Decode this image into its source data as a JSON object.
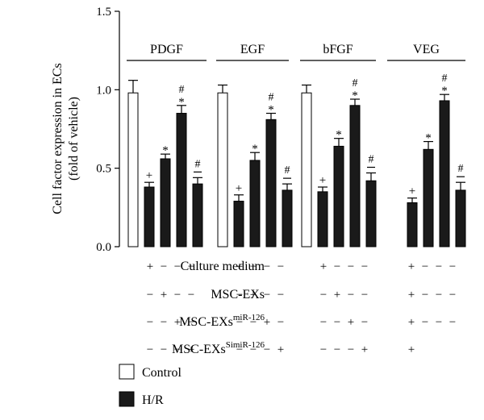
{
  "chart_data": {
    "type": "bar",
    "ylabel_line1": "Cell factor expression in ECs",
    "ylabel_line2": "(fold of vehicle)",
    "ylim": [
      0,
      1.5
    ],
    "yticks": [
      "0.0",
      "0.5",
      "1.0",
      "1.5"
    ],
    "groups": [
      {
        "name": "PDGF",
        "bars": [
          {
            "series": "Control",
            "value": 0.98,
            "error": 0.08,
            "mark": ""
          },
          {
            "series": "H/R",
            "value": 0.38,
            "error": 0.03,
            "mark": "+"
          },
          {
            "series": "H/R",
            "value": 0.56,
            "error": 0.03,
            "mark": "*"
          },
          {
            "series": "H/R",
            "value": 0.85,
            "error": 0.05,
            "mark": "*#"
          },
          {
            "series": "H/R",
            "value": 0.4,
            "error": 0.04,
            "mark": "-#"
          }
        ],
        "signs": [
          "+",
          "−",
          "−",
          "−",
          "−",
          "+",
          "−",
          "−",
          "−",
          "−",
          "+",
          "−",
          "−",
          "−",
          "−",
          "+"
        ]
      },
      {
        "name": "EGF",
        "bars": [
          {
            "series": "Control",
            "value": 0.98,
            "error": 0.05,
            "mark": ""
          },
          {
            "series": "H/R",
            "value": 0.29,
            "error": 0.04,
            "mark": "+"
          },
          {
            "series": "H/R",
            "value": 0.55,
            "error": 0.05,
            "mark": "*"
          },
          {
            "series": "H/R",
            "value": 0.81,
            "error": 0.04,
            "mark": "*#"
          },
          {
            "series": "H/R",
            "value": 0.36,
            "error": 0.04,
            "mark": "-#"
          }
        ],
        "signs": [
          "+",
          "−",
          "−",
          "−",
          "−",
          "+",
          "−",
          "−",
          "−",
          "−",
          "+",
          "−",
          "−",
          "−",
          "−",
          "+"
        ]
      },
      {
        "name": "bFGF",
        "bars": [
          {
            "series": "Control",
            "value": 0.98,
            "error": 0.05,
            "mark": ""
          },
          {
            "series": "H/R",
            "value": 0.35,
            "error": 0.03,
            "mark": "+"
          },
          {
            "series": "H/R",
            "value": 0.64,
            "error": 0.05,
            "mark": "*"
          },
          {
            "series": "H/R",
            "value": 0.9,
            "error": 0.04,
            "mark": "*#"
          },
          {
            "series": "H/R",
            "value": 0.42,
            "error": 0.05,
            "mark": "-#"
          }
        ],
        "signs": [
          "+",
          "−",
          "−",
          "−",
          "−",
          "+",
          "−",
          "−",
          "−",
          "−",
          "+",
          "−",
          "−",
          "−",
          "−",
          "+"
        ]
      },
      {
        "name": "VEG",
        "bars": [
          {
            "series": "H/R",
            "value": 0.28,
            "error": 0.03,
            "mark": "+"
          },
          {
            "series": "H/R",
            "value": 0.62,
            "error": 0.05,
            "mark": "*"
          },
          {
            "series": "H/R",
            "value": 0.93,
            "error": 0.04,
            "mark": "*#"
          },
          {
            "series": "H/R",
            "value": 0.36,
            "error": 0.05,
            "mark": "-#"
          }
        ],
        "signs": [
          "+",
          "−",
          "−",
          "−",
          "+",
          "−",
          "−",
          "−",
          "+",
          "−",
          "−",
          "−",
          "+"
        ]
      }
    ],
    "condition_rows": [
      {
        "label": "Culture medium",
        "sup": ""
      },
      {
        "label": "MSC-EXs",
        "sup": ""
      },
      {
        "label": "MSC-EXs",
        "sup": "miR-126"
      },
      {
        "label": "MSC-EXs",
        "sup": "SimiR-126"
      }
    ],
    "legend": [
      {
        "label": "Control",
        "color": "#ffffff"
      },
      {
        "label": "H/R",
        "color": "#1a1a1a"
      }
    ]
  }
}
